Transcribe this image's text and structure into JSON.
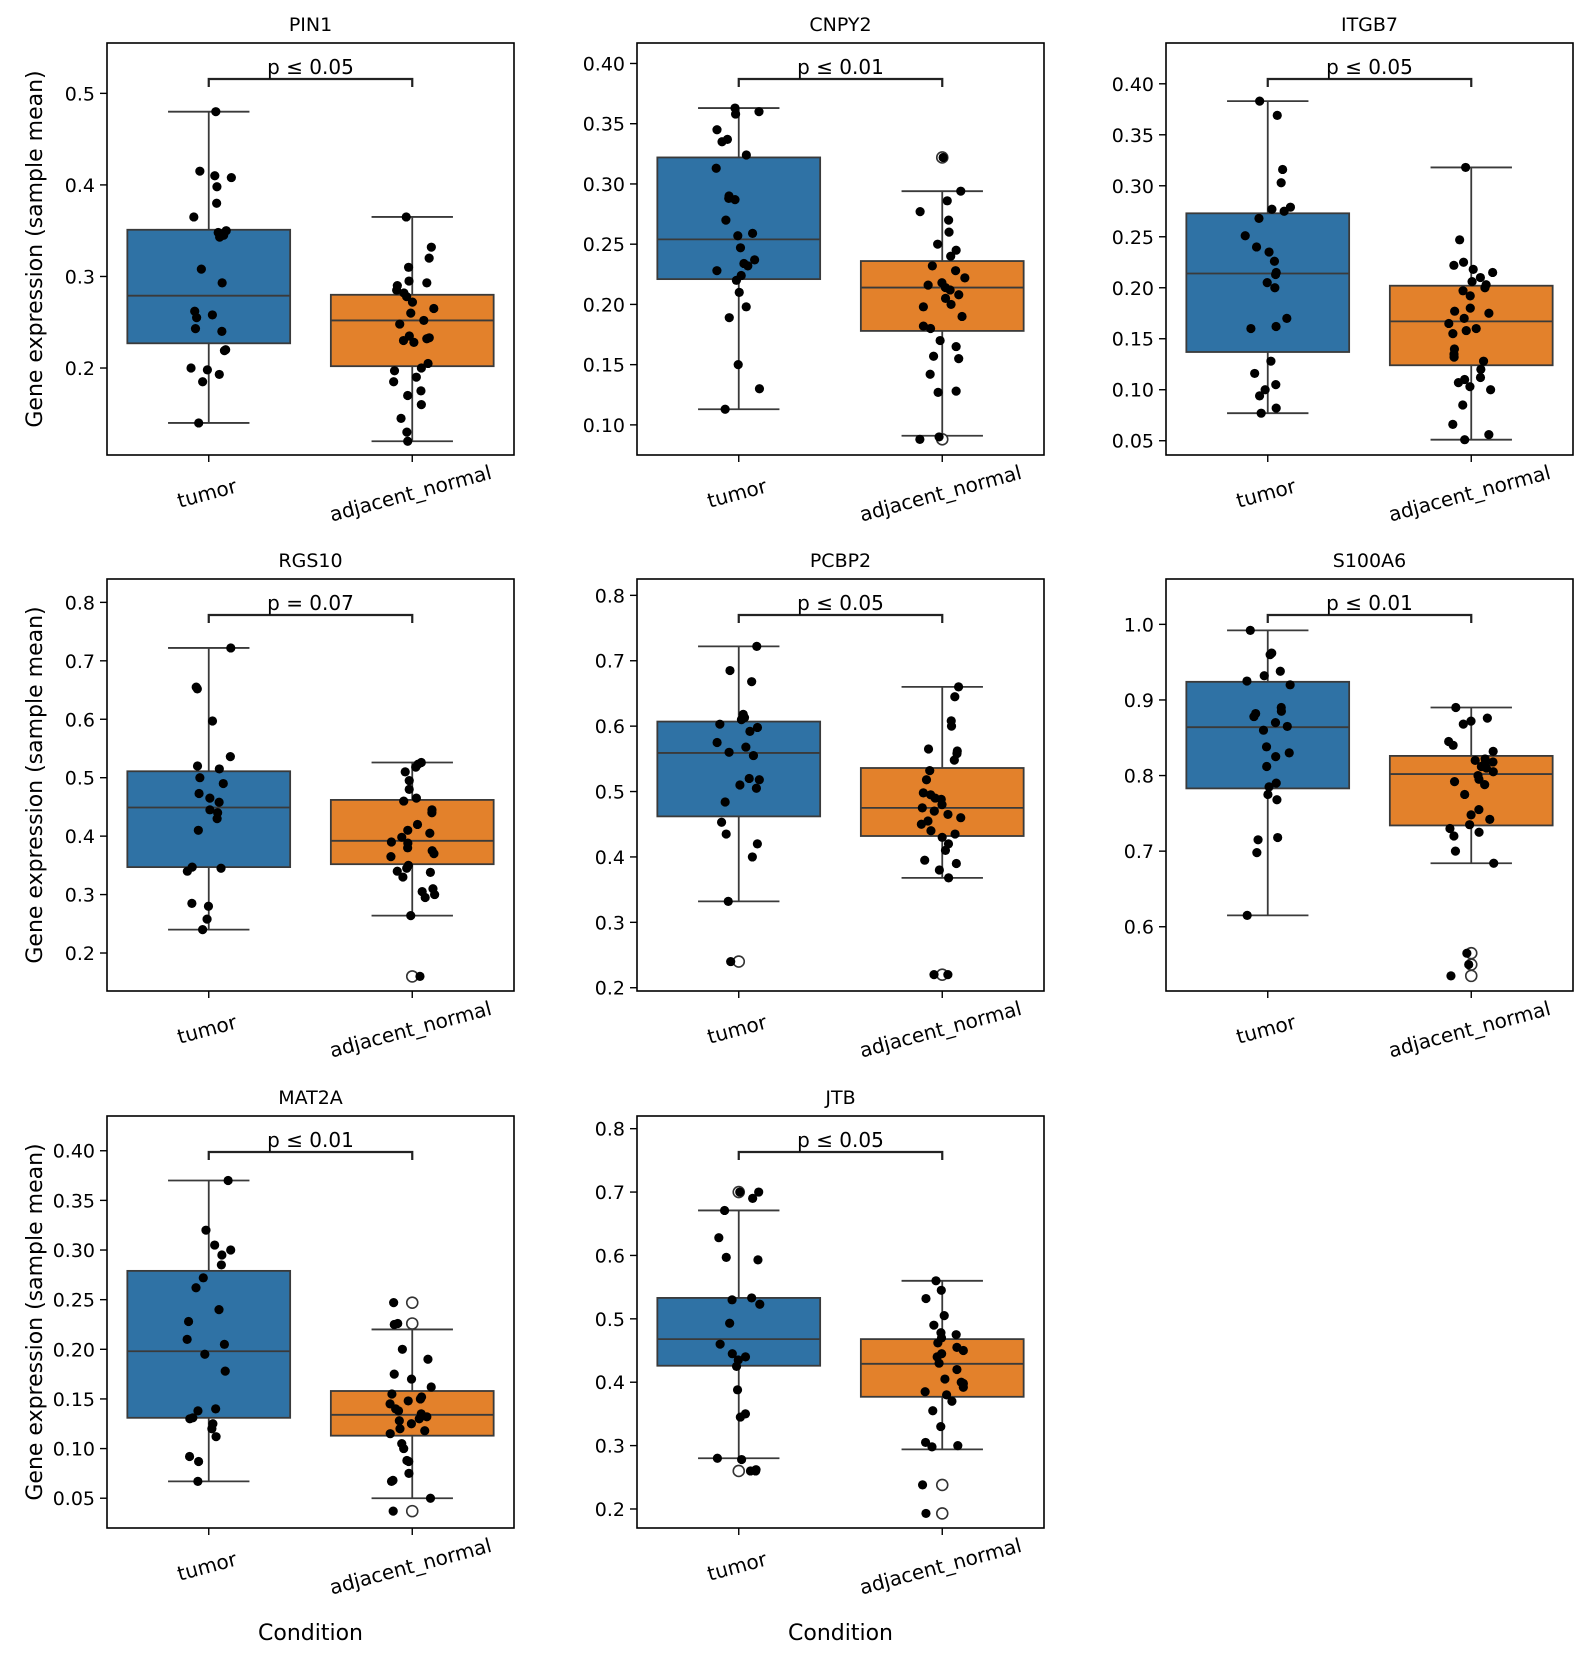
{
  "figure": {
    "ylabel": "Gene expression (sample mean)",
    "xlabel": "Condition",
    "colors": {
      "tumor": "#2f72a5",
      "adjacent_normal": "#e3812b",
      "point": "#000000",
      "outlier_edge": "#333333",
      "box_edge": "#3a3a3a"
    }
  },
  "chart_data": [
    {
      "type": "box",
      "title": "PIN1",
      "categories": [
        "tumor",
        "adjacent_normal"
      ],
      "yticks": [
        "0.2",
        "0.3",
        "0.4",
        "0.5"
      ],
      "ylim": [
        0.105,
        0.555
      ],
      "significance": "p ≤ 0.05",
      "boxes": [
        {
          "q1": 0.227,
          "median": 0.279,
          "q3": 0.351,
          "whisker_low": 0.14,
          "whisker_high": 0.48,
          "outliers": [],
          "points": [
            0.48,
            0.415,
            0.41,
            0.408,
            0.398,
            0.38,
            0.365,
            0.35,
            0.348,
            0.345,
            0.343,
            0.308,
            0.293,
            0.262,
            0.258,
            0.255,
            0.243,
            0.24,
            0.22,
            0.219,
            0.2,
            0.198,
            0.193,
            0.185,
            0.14
          ]
        },
        {
          "q1": 0.202,
          "median": 0.252,
          "q3": 0.28,
          "whisker_low": 0.12,
          "whisker_high": 0.365,
          "outliers": [],
          "points": [
            0.365,
            0.332,
            0.32,
            0.31,
            0.295,
            0.293,
            0.29,
            0.285,
            0.282,
            0.278,
            0.272,
            0.265,
            0.26,
            0.252,
            0.248,
            0.235,
            0.233,
            0.232,
            0.23,
            0.228,
            0.205,
            0.2,
            0.197,
            0.19,
            0.185,
            0.175,
            0.17,
            0.16,
            0.145,
            0.13,
            0.12
          ]
        }
      ]
    },
    {
      "type": "box",
      "title": "CNPY2",
      "categories": [
        "tumor",
        "adjacent_normal"
      ],
      "yticks": [
        "0.10",
        "0.15",
        "0.20",
        "0.25",
        "0.30",
        "0.35",
        "0.40"
      ],
      "ylim": [
        0.075,
        0.417
      ],
      "significance": "p ≤ 0.01",
      "boxes": [
        {
          "q1": 0.221,
          "median": 0.254,
          "q3": 0.322,
          "whisker_low": 0.113,
          "whisker_high": 0.363,
          "outliers": [],
          "points": [
            0.363,
            0.36,
            0.358,
            0.345,
            0.337,
            0.335,
            0.324,
            0.313,
            0.29,
            0.288,
            0.287,
            0.27,
            0.259,
            0.257,
            0.247,
            0.237,
            0.234,
            0.232,
            0.228,
            0.224,
            0.22,
            0.21,
            0.198,
            0.189,
            0.15,
            0.13,
            0.113
          ]
        },
        {
          "q1": 0.178,
          "median": 0.214,
          "q3": 0.236,
          "whisker_low": 0.091,
          "whisker_high": 0.294,
          "outliers": [
            0.322,
            0.088
          ],
          "points": [
            0.322,
            0.294,
            0.286,
            0.277,
            0.27,
            0.26,
            0.25,
            0.245,
            0.24,
            0.232,
            0.228,
            0.222,
            0.218,
            0.216,
            0.214,
            0.212,
            0.208,
            0.205,
            0.2,
            0.198,
            0.19,
            0.182,
            0.18,
            0.17,
            0.165,
            0.157,
            0.155,
            0.142,
            0.128,
            0.127,
            0.09,
            0.088
          ]
        }
      ]
    },
    {
      "type": "box",
      "title": "ITGB7",
      "categories": [
        "tumor",
        "adjacent_normal"
      ],
      "yticks": [
        "0.05",
        "0.10",
        "0.15",
        "0.20",
        "0.25",
        "0.30",
        "0.35",
        "0.40"
      ],
      "ylim": [
        0.036,
        0.44
      ],
      "significance": "p ≤ 0.05",
      "boxes": [
        {
          "q1": 0.137,
          "median": 0.214,
          "q3": 0.273,
          "whisker_low": 0.077,
          "whisker_high": 0.383,
          "outliers": [],
          "points": [
            0.383,
            0.369,
            0.316,
            0.303,
            0.279,
            0.277,
            0.275,
            0.268,
            0.251,
            0.24,
            0.235,
            0.226,
            0.215,
            0.213,
            0.205,
            0.2,
            0.17,
            0.162,
            0.16,
            0.128,
            0.116,
            0.105,
            0.1,
            0.094,
            0.082,
            0.077
          ]
        },
        {
          "q1": 0.124,
          "median": 0.167,
          "q3": 0.202,
          "whisker_low": 0.051,
          "whisker_high": 0.318,
          "outliers": [],
          "points": [
            0.318,
            0.247,
            0.225,
            0.222,
            0.218,
            0.215,
            0.21,
            0.206,
            0.203,
            0.2,
            0.197,
            0.192,
            0.18,
            0.177,
            0.175,
            0.17,
            0.165,
            0.16,
            0.158,
            0.155,
            0.14,
            0.135,
            0.132,
            0.128,
            0.12,
            0.112,
            0.11,
            0.107,
            0.103,
            0.1,
            0.085,
            0.066,
            0.056,
            0.051
          ]
        }
      ]
    },
    {
      "type": "box",
      "title": "RGS10",
      "categories": [
        "tumor",
        "adjacent_normal"
      ],
      "yticks": [
        "0.2",
        "0.3",
        "0.4",
        "0.5",
        "0.6",
        "0.7",
        "0.8"
      ],
      "ylim": [
        0.135,
        0.84
      ],
      "significance": "p = 0.07",
      "boxes": [
        {
          "q1": 0.347,
          "median": 0.449,
          "q3": 0.511,
          "whisker_low": 0.24,
          "whisker_high": 0.722,
          "outliers": [],
          "points": [
            0.722,
            0.655,
            0.652,
            0.597,
            0.536,
            0.52,
            0.515,
            0.5,
            0.49,
            0.473,
            0.465,
            0.458,
            0.445,
            0.44,
            0.43,
            0.41,
            0.347,
            0.345,
            0.34,
            0.285,
            0.28,
            0.258,
            0.24
          ]
        },
        {
          "q1": 0.352,
          "median": 0.392,
          "q3": 0.462,
          "whisker_low": 0.264,
          "whisker_high": 0.526,
          "outliers": [
            0.16
          ],
          "points": [
            0.526,
            0.523,
            0.518,
            0.51,
            0.495,
            0.48,
            0.465,
            0.46,
            0.445,
            0.44,
            0.42,
            0.41,
            0.405,
            0.398,
            0.39,
            0.388,
            0.38,
            0.375,
            0.37,
            0.365,
            0.35,
            0.345,
            0.34,
            0.338,
            0.33,
            0.31,
            0.305,
            0.3,
            0.295,
            0.264,
            0.16
          ]
        }
      ]
    },
    {
      "type": "box",
      "title": "PCBP2",
      "categories": [
        "tumor",
        "adjacent_normal"
      ],
      "yticks": [
        "0.2",
        "0.3",
        "0.4",
        "0.5",
        "0.6",
        "0.7",
        "0.8"
      ],
      "ylim": [
        0.195,
        0.825
      ],
      "significance": "p ≤ 0.05",
      "boxes": [
        {
          "q1": 0.462,
          "median": 0.559,
          "q3": 0.607,
          "whisker_low": 0.332,
          "whisker_high": 0.722,
          "outliers": [
            0.24
          ],
          "points": [
            0.722,
            0.685,
            0.668,
            0.618,
            0.613,
            0.61,
            0.603,
            0.598,
            0.592,
            0.575,
            0.568,
            0.56,
            0.555,
            0.52,
            0.518,
            0.51,
            0.505,
            0.484,
            0.453,
            0.435,
            0.42,
            0.4,
            0.332,
            0.24
          ]
        },
        {
          "q1": 0.432,
          "median": 0.475,
          "q3": 0.536,
          "whisker_low": 0.368,
          "whisker_high": 0.66,
          "outliers": [
            0.22
          ],
          "points": [
            0.66,
            0.645,
            0.608,
            0.6,
            0.565,
            0.562,
            0.558,
            0.548,
            0.532,
            0.518,
            0.498,
            0.495,
            0.49,
            0.488,
            0.48,
            0.475,
            0.47,
            0.465,
            0.46,
            0.455,
            0.45,
            0.44,
            0.435,
            0.43,
            0.42,
            0.41,
            0.395,
            0.39,
            0.38,
            0.368,
            0.22,
            0.22
          ]
        }
      ]
    },
    {
      "type": "box",
      "title": "S100A6",
      "categories": [
        "tumor",
        "adjacent_normal"
      ],
      "yticks": [
        "0.6",
        "0.7",
        "0.8",
        "0.9",
        "1.0"
      ],
      "ylim": [
        0.515,
        1.06
      ],
      "significance": "p ≤ 0.01",
      "boxes": [
        {
          "q1": 0.783,
          "median": 0.864,
          "q3": 0.924,
          "whisker_low": 0.615,
          "whisker_high": 0.992,
          "outliers": [],
          "points": [
            0.992,
            0.962,
            0.96,
            0.938,
            0.932,
            0.925,
            0.92,
            0.89,
            0.885,
            0.882,
            0.878,
            0.87,
            0.865,
            0.86,
            0.838,
            0.83,
            0.825,
            0.812,
            0.79,
            0.785,
            0.775,
            0.768,
            0.718,
            0.715,
            0.698,
            0.615
          ]
        },
        {
          "q1": 0.734,
          "median": 0.802,
          "q3": 0.826,
          "whisker_low": 0.684,
          "whisker_high": 0.89,
          "outliers": [
            0.565,
            0.55,
            0.535
          ],
          "points": [
            0.89,
            0.876,
            0.872,
            0.868,
            0.845,
            0.84,
            0.832,
            0.822,
            0.82,
            0.818,
            0.815,
            0.812,
            0.81,
            0.805,
            0.8,
            0.795,
            0.792,
            0.788,
            0.775,
            0.755,
            0.748,
            0.742,
            0.735,
            0.73,
            0.725,
            0.72,
            0.7,
            0.684,
            0.565,
            0.55,
            0.535
          ]
        }
      ]
    },
    {
      "type": "box",
      "title": "MAT2A",
      "categories": [
        "tumor",
        "adjacent_normal"
      ],
      "yticks": [
        "0.05",
        "0.10",
        "0.15",
        "0.20",
        "0.25",
        "0.30",
        "0.35",
        "0.40"
      ],
      "ylim": [
        0.02,
        0.435
      ],
      "significance": "p ≤ 0.01",
      "boxes": [
        {
          "q1": 0.131,
          "median": 0.198,
          "q3": 0.279,
          "whisker_low": 0.067,
          "whisker_high": 0.37,
          "outliers": [],
          "points": [
            0.37,
            0.32,
            0.305,
            0.3,
            0.295,
            0.285,
            0.272,
            0.262,
            0.24,
            0.228,
            0.21,
            0.205,
            0.195,
            0.178,
            0.14,
            0.138,
            0.131,
            0.13,
            0.125,
            0.12,
            0.112,
            0.092,
            0.087,
            0.067
          ]
        },
        {
          "q1": 0.113,
          "median": 0.134,
          "q3": 0.158,
          "whisker_low": 0.05,
          "whisker_high": 0.22,
          "outliers": [
            0.247,
            0.226,
            0.037
          ],
          "points": [
            0.247,
            0.226,
            0.225,
            0.2,
            0.19,
            0.175,
            0.17,
            0.162,
            0.155,
            0.152,
            0.15,
            0.148,
            0.145,
            0.14,
            0.138,
            0.135,
            0.132,
            0.13,
            0.128,
            0.125,
            0.12,
            0.118,
            0.115,
            0.105,
            0.1,
            0.088,
            0.087,
            0.075,
            0.068,
            0.067,
            0.05,
            0.037
          ]
        }
      ]
    },
    {
      "type": "box",
      "title": "JTB",
      "categories": [
        "tumor",
        "adjacent_normal"
      ],
      "yticks": [
        "0.2",
        "0.3",
        "0.4",
        "0.5",
        "0.6",
        "0.7",
        "0.8"
      ],
      "ylim": [
        0.17,
        0.82
      ],
      "significance": "p ≤ 0.05",
      "boxes": [
        {
          "q1": 0.426,
          "median": 0.468,
          "q3": 0.533,
          "whisker_low": 0.28,
          "whisker_high": 0.671,
          "outliers": [
            0.7,
            0.26
          ],
          "points": [
            0.7,
            0.7,
            0.69,
            0.671,
            0.628,
            0.597,
            0.593,
            0.533,
            0.53,
            0.523,
            0.493,
            0.46,
            0.445,
            0.44,
            0.435,
            0.425,
            0.388,
            0.35,
            0.345,
            0.28,
            0.278,
            0.262,
            0.26,
            0.26
          ]
        },
        {
          "q1": 0.377,
          "median": 0.429,
          "q3": 0.468,
          "whisker_low": 0.294,
          "whisker_high": 0.56,
          "outliers": [
            0.238,
            0.193
          ],
          "points": [
            0.56,
            0.545,
            0.532,
            0.505,
            0.49,
            0.478,
            0.475,
            0.47,
            0.462,
            0.455,
            0.45,
            0.445,
            0.44,
            0.43,
            0.42,
            0.405,
            0.4,
            0.398,
            0.392,
            0.385,
            0.38,
            0.37,
            0.355,
            0.33,
            0.305,
            0.3,
            0.298,
            0.238,
            0.193
          ]
        }
      ]
    }
  ]
}
